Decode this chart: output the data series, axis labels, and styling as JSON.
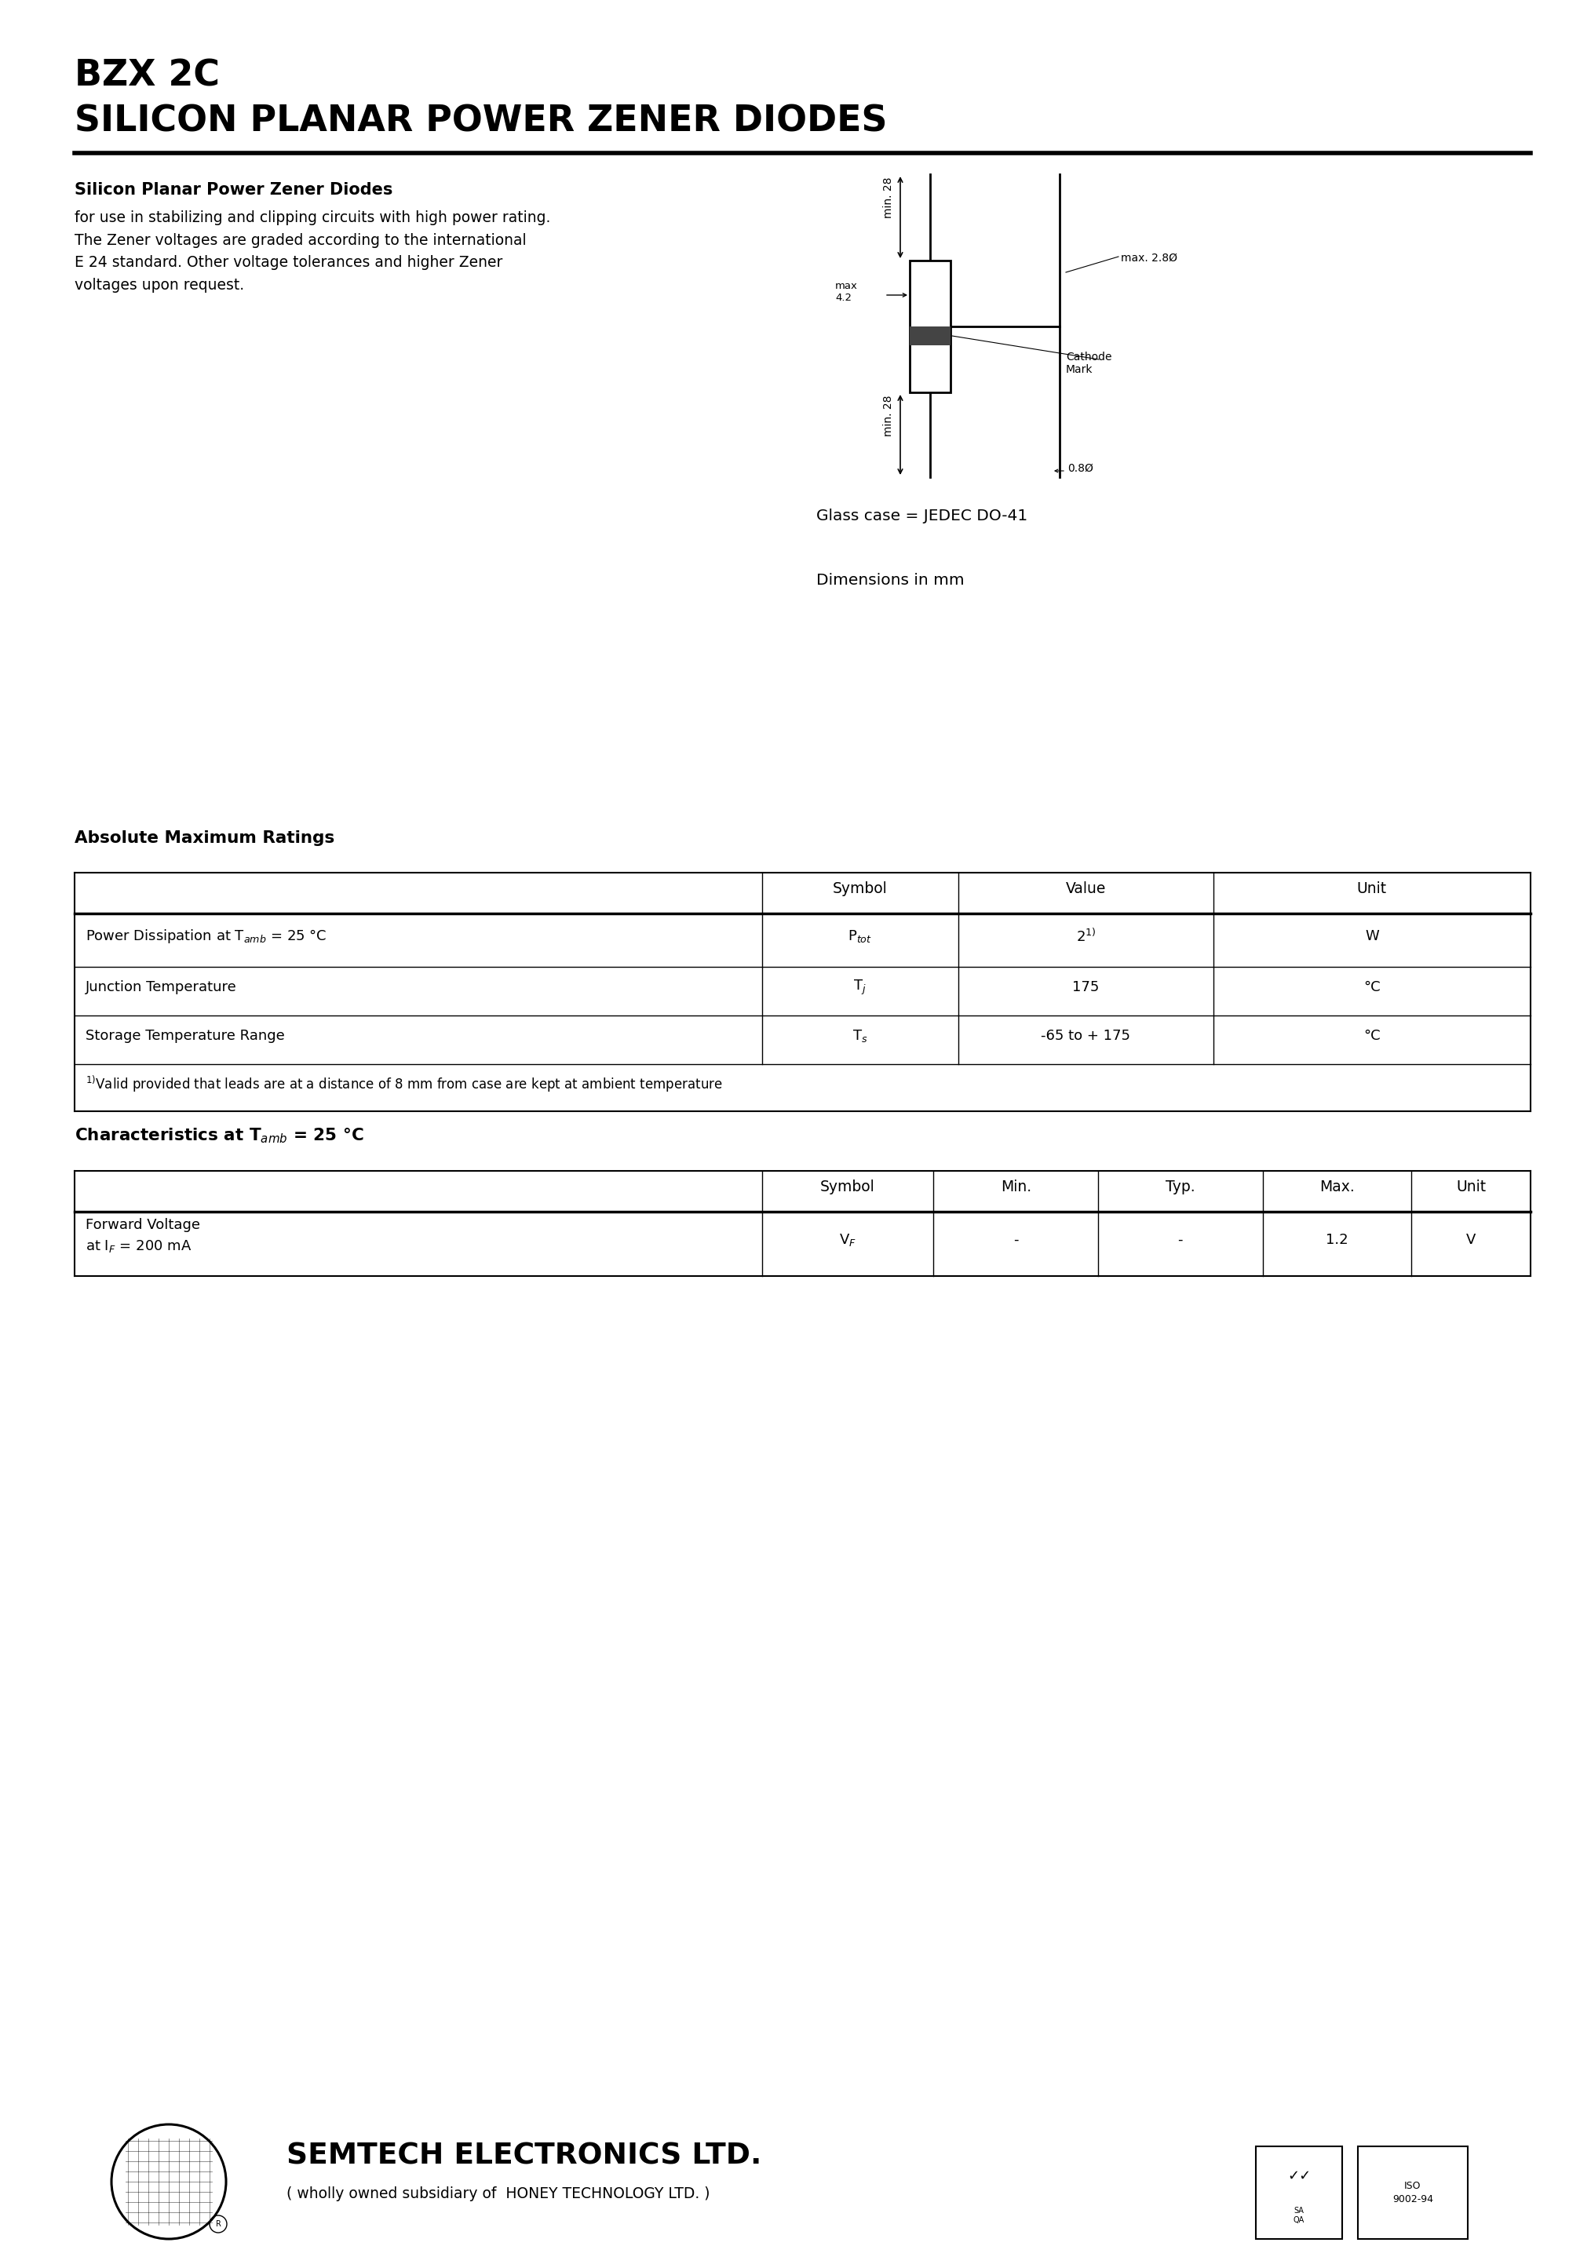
{
  "title_line1": "BZX 2C",
  "title_line2": "SILICON PLANAR POWER ZENER DIODES",
  "section1_bold": "Silicon Planar Power Zener Diodes",
  "section1_normal": "for use in stabilizing and clipping circuits with high power rating.\nThe Zener voltages are graded according to the international\nE 24 standard. Other voltage tolerances and higher Zener\nvoltages upon request.",
  "glass_case": "Glass case = JEDEC DO-41",
  "dimensions": "Dimensions in mm",
  "abs_max_title": "Absolute Maximum Ratings",
  "char_title": "Characteristics at T$_{amb}$ = 25 °C",
  "footer_company": "SEMTECH ELECTRONICS LTD.",
  "footer_sub": "( wholly owned subsidiary of  HONEY TECHNOLOGY LTD. )",
  "bg": "#ffffff",
  "fg": "#000000",
  "ml": 95,
  "mr": 1950
}
